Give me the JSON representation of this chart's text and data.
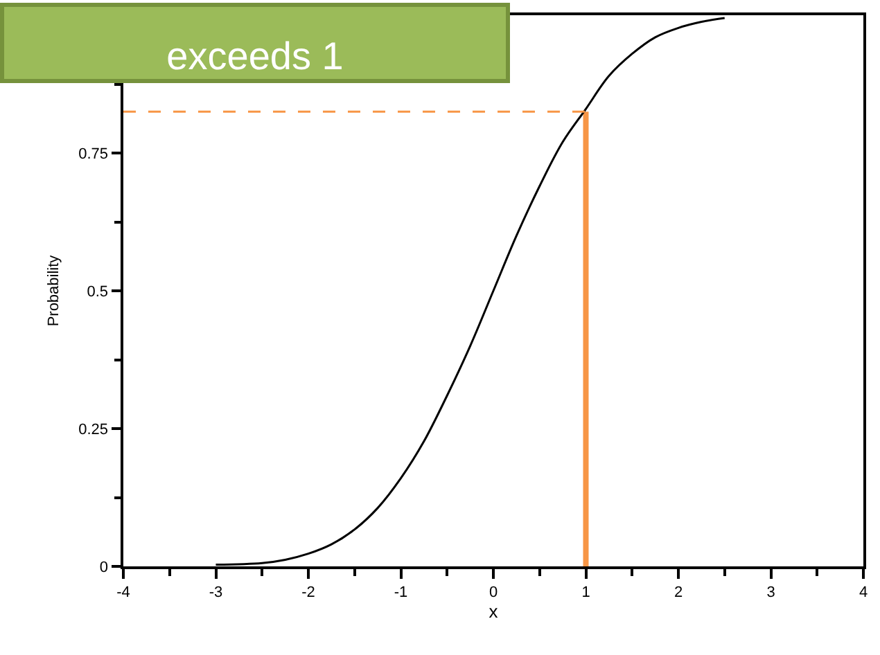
{
  "chart_data": {
    "type": "line",
    "xlabel": "x",
    "ylabel": "Probability",
    "annotations": [
      "exceeds 1"
    ],
    "xlim": [
      -4,
      4
    ],
    "xticks": [
      -4,
      {
        "value": -3.5,
        "label": null
      },
      -3,
      {
        "value": -2.5,
        "label": null
      },
      -2,
      {
        "value": -1.5,
        "label": null
      },
      -1,
      {
        "value": -0.5,
        "label": null
      },
      0,
      {
        "value": 0.5,
        "label": null
      },
      1,
      {
        "value": 1.5,
        "label": null
      },
      2,
      {
        "value": 2.5,
        "label": null
      },
      3,
      {
        "value": 3.5,
        "label": null
      },
      4
    ],
    "ylim": [
      0,
      1
    ],
    "yticks": [
      0,
      {
        "value": 0.125,
        "label": null
      },
      0.25,
      {
        "value": 0.375,
        "label": null
      },
      0.5,
      {
        "value": 0.625,
        "label": null
      },
      0.75,
      {
        "value": 0.875,
        "label": null
      }
    ],
    "marker": "none",
    "series": [
      {
        "color": "#000000",
        "line_style": "solid",
        "x": [
          -3,
          -2.5,
          -2.25,
          -2,
          -1.75,
          -1.5,
          -1.25,
          -1,
          -0.75,
          -0.5,
          -0.25,
          0,
          0.25,
          0.5,
          0.75,
          1,
          1.25,
          1.5,
          1.75,
          2,
          2.25,
          2.5
        ],
        "values": [
          0.003,
          0.006,
          0.012,
          0.023,
          0.04,
          0.067,
          0.106,
          0.16,
          0.227,
          0.31,
          0.4,
          0.5,
          0.6,
          0.69,
          0.77,
          0.83,
          0.89,
          0.93,
          0.96,
          0.977,
          0.988,
          0.995
        ]
      },
      {
        "color": "#f79646",
        "line_style": "dashed",
        "x": [
          -4,
          1
        ],
        "values": [
          0.825,
          0.825
        ]
      },
      {
        "type": "bar",
        "color": "#f79646",
        "x": [
          1
        ],
        "values": [
          0.825
        ]
      }
    ]
  }
}
